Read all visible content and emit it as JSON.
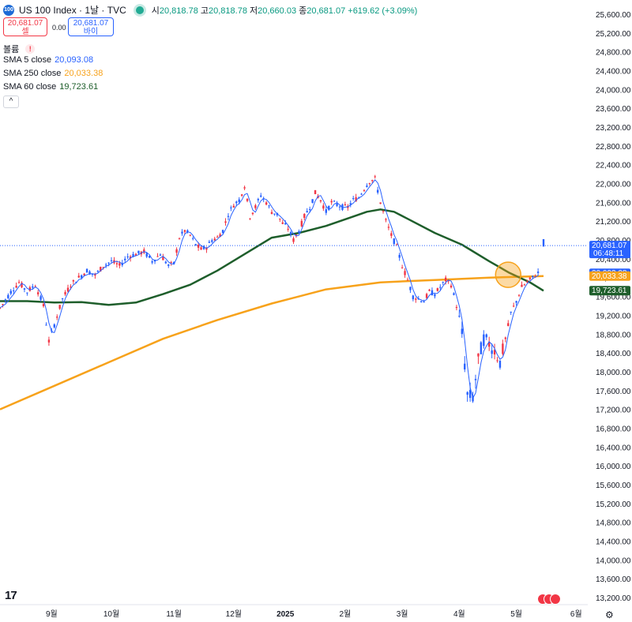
{
  "header": {
    "badge": "100",
    "title": "US 100 Index · 1날 · TVC",
    "open_label": "시",
    "open": "20,818.78",
    "high_label": "고",
    "high": "20,818.78",
    "low_label": "저",
    "low": "20,660.03",
    "close_label": "종",
    "close": "20,681.07",
    "change": "+619.62 (+3.09%)"
  },
  "trade": {
    "sell_price": "20,681.07",
    "sell_label": "셀",
    "spread": "0.00",
    "buy_price": "20,681.07",
    "buy_label": "바이"
  },
  "volume": {
    "label": "볼륨",
    "warn": "!"
  },
  "indicators": [
    {
      "label": "SMA 5 close",
      "value": "20,093.08",
      "color": "#2962ff"
    },
    {
      "label": "SMA 250 close",
      "value": "20,033.38",
      "color": "#f7a21b"
    },
    {
      "label": "SMA 60 close",
      "value": "19,723.61",
      "color": "#1e5e2b"
    }
  ],
  "collapse": "^",
  "colors": {
    "up": "#f23645",
    "down": "#2962ff",
    "sma5": "#2962ff",
    "sma250": "#f7a21b",
    "sma60": "#1e5e2b",
    "price_line": "#2962ff"
  },
  "price_tags": [
    {
      "price": 20681.07,
      "line1": "20,681.07",
      "line2": "06:48:11",
      "color": "#2962ff"
    },
    {
      "price": 20093.08,
      "line1": "20,093.08",
      "line2": "",
      "color": "#2962ff"
    },
    {
      "price": 20033.38,
      "line1": "20,033.38",
      "line2": "",
      "color": "#f7a21b"
    },
    {
      "price": 19723.61,
      "line1": "19,723.61",
      "line2": "",
      "color": "#1e5e2b"
    }
  ],
  "chart_data": {
    "type": "line",
    "y_ticks": [
      "25,600.00",
      "25,200.00",
      "24,800.00",
      "24,400.00",
      "24,000.00",
      "23,600.00",
      "23,200.00",
      "22,800.00",
      "22,400.00",
      "22,000.00",
      "21,600.00",
      "21,200.00",
      "20,800.00",
      "20,400.00",
      "20,000.00",
      "19,600.00",
      "19,200.00",
      "18,800.00",
      "18,400.00",
      "18,000.00",
      "17,600.00",
      "17,200.00",
      "16,800.00",
      "16,400.00",
      "16,000.00",
      "15,600.00",
      "15,200.00",
      "14,800.00",
      "14,400.00",
      "14,000.00",
      "13,600.00",
      "13,200.00"
    ],
    "y_tick_values": [
      25600,
      25200,
      24800,
      24400,
      24000,
      23600,
      23200,
      22800,
      22400,
      22000,
      21600,
      21200,
      20800,
      20400,
      20000,
      19600,
      19200,
      18800,
      18400,
      18000,
      17600,
      17200,
      16800,
      16400,
      16000,
      15600,
      15200,
      14800,
      14400,
      14000,
      13600,
      13200
    ],
    "ylim": [
      13000,
      25800
    ],
    "x_ticks": [
      "9월",
      "10월",
      "11월",
      "12월",
      "2025",
      "2월",
      "3월",
      "4월",
      "5월",
      "6월"
    ],
    "x_tick_index": [
      38,
      82,
      128,
      172,
      210,
      254,
      296,
      338,
      380,
      424
    ],
    "ohlc_points": [
      {
        "i": 0,
        "v": 19350
      },
      {
        "i": 8,
        "v": 19700
      },
      {
        "i": 14,
        "v": 19900
      },
      {
        "i": 20,
        "v": 19700
      },
      {
        "i": 26,
        "v": 19850
      },
      {
        "i": 32,
        "v": 19400
      },
      {
        "i": 36,
        "v": 18650
      },
      {
        "i": 40,
        "v": 19000
      },
      {
        "i": 46,
        "v": 19550
      },
      {
        "i": 52,
        "v": 19850
      },
      {
        "i": 58,
        "v": 20000
      },
      {
        "i": 64,
        "v": 20150
      },
      {
        "i": 70,
        "v": 20050
      },
      {
        "i": 76,
        "v": 20250
      },
      {
        "i": 82,
        "v": 20350
      },
      {
        "i": 88,
        "v": 20250
      },
      {
        "i": 94,
        "v": 20450
      },
      {
        "i": 100,
        "v": 20500
      },
      {
        "i": 106,
        "v": 20550
      },
      {
        "i": 112,
        "v": 20350
      },
      {
        "i": 118,
        "v": 20500
      },
      {
        "i": 124,
        "v": 20250
      },
      {
        "i": 128,
        "v": 20300
      },
      {
        "i": 132,
        "v": 20850
      },
      {
        "i": 136,
        "v": 21000
      },
      {
        "i": 140,
        "v": 20900
      },
      {
        "i": 144,
        "v": 20700
      },
      {
        "i": 148,
        "v": 20600
      },
      {
        "i": 152,
        "v": 20650
      },
      {
        "i": 156,
        "v": 20800
      },
      {
        "i": 160,
        "v": 20850
      },
      {
        "i": 164,
        "v": 21000
      },
      {
        "i": 168,
        "v": 21350
      },
      {
        "i": 172,
        "v": 21550
      },
      {
        "i": 176,
        "v": 21650
      },
      {
        "i": 180,
        "v": 21950
      },
      {
        "i": 184,
        "v": 21300
      },
      {
        "i": 188,
        "v": 21500
      },
      {
        "i": 192,
        "v": 21750
      },
      {
        "i": 196,
        "v": 21600
      },
      {
        "i": 200,
        "v": 21400
      },
      {
        "i": 204,
        "v": 21350
      },
      {
        "i": 208,
        "v": 21150
      },
      {
        "i": 212,
        "v": 21050
      },
      {
        "i": 216,
        "v": 20800
      },
      {
        "i": 220,
        "v": 21000
      },
      {
        "i": 224,
        "v": 21300
      },
      {
        "i": 228,
        "v": 21500
      },
      {
        "i": 232,
        "v": 21800
      },
      {
        "i": 236,
        "v": 21650
      },
      {
        "i": 240,
        "v": 21400
      },
      {
        "i": 244,
        "v": 21600
      },
      {
        "i": 248,
        "v": 21550
      },
      {
        "i": 252,
        "v": 21500
      },
      {
        "i": 256,
        "v": 21500
      },
      {
        "i": 260,
        "v": 21650
      },
      {
        "i": 264,
        "v": 21700
      },
      {
        "i": 268,
        "v": 21900
      },
      {
        "i": 272,
        "v": 22050
      },
      {
        "i": 276,
        "v": 22100
      },
      {
        "i": 280,
        "v": 21600
      },
      {
        "i": 284,
        "v": 21200
      },
      {
        "i": 288,
        "v": 20900
      },
      {
        "i": 292,
        "v": 20650
      },
      {
        "i": 296,
        "v": 20250
      },
      {
        "i": 300,
        "v": 19950
      },
      {
        "i": 304,
        "v": 19600
      },
      {
        "i": 308,
        "v": 19550
      },
      {
        "i": 312,
        "v": 19500
      },
      {
        "i": 316,
        "v": 19700
      },
      {
        "i": 320,
        "v": 19650
      },
      {
        "i": 324,
        "v": 19800
      },
      {
        "i": 328,
        "v": 19950
      },
      {
        "i": 332,
        "v": 19850
      },
      {
        "i": 336,
        "v": 19400
      },
      {
        "i": 340,
        "v": 18800
      },
      {
        "i": 344,
        "v": 17500
      },
      {
        "i": 348,
        "v": 17450
      },
      {
        "i": 352,
        "v": 18250
      },
      {
        "i": 356,
        "v": 18700
      },
      {
        "i": 360,
        "v": 18600
      },
      {
        "i": 364,
        "v": 18450
      },
      {
        "i": 368,
        "v": 18200
      },
      {
        "i": 372,
        "v": 18700
      },
      {
        "i": 376,
        "v": 19250
      },
      {
        "i": 380,
        "v": 19500
      },
      {
        "i": 384,
        "v": 19800
      },
      {
        "i": 388,
        "v": 19900
      },
      {
        "i": 392,
        "v": 20000
      },
      {
        "i": 396,
        "v": 20100
      },
      {
        "i": 400,
        "v": 20681
      }
    ],
    "sma60": [
      {
        "i": 0,
        "v": 19500
      },
      {
        "i": 20,
        "v": 19500
      },
      {
        "i": 40,
        "v": 19470
      },
      {
        "i": 60,
        "v": 19480
      },
      {
        "i": 80,
        "v": 19420
      },
      {
        "i": 100,
        "v": 19470
      },
      {
        "i": 120,
        "v": 19650
      },
      {
        "i": 140,
        "v": 19850
      },
      {
        "i": 160,
        "v": 20150
      },
      {
        "i": 180,
        "v": 20500
      },
      {
        "i": 200,
        "v": 20850
      },
      {
        "i": 220,
        "v": 20950
      },
      {
        "i": 240,
        "v": 21100
      },
      {
        "i": 260,
        "v": 21300
      },
      {
        "i": 270,
        "v": 21400
      },
      {
        "i": 280,
        "v": 21450
      },
      {
        "i": 290,
        "v": 21400
      },
      {
        "i": 300,
        "v": 21250
      },
      {
        "i": 320,
        "v": 20950
      },
      {
        "i": 340,
        "v": 20700
      },
      {
        "i": 360,
        "v": 20350
      },
      {
        "i": 375,
        "v": 20100
      },
      {
        "i": 390,
        "v": 19900
      },
      {
        "i": 400,
        "v": 19723
      }
    ],
    "sma250": [
      {
        "i": 0,
        "v": 17200
      },
      {
        "i": 40,
        "v": 17700
      },
      {
        "i": 80,
        "v": 18200
      },
      {
        "i": 120,
        "v": 18700
      },
      {
        "i": 160,
        "v": 19100
      },
      {
        "i": 200,
        "v": 19450
      },
      {
        "i": 240,
        "v": 19750
      },
      {
        "i": 280,
        "v": 19900
      },
      {
        "i": 320,
        "v": 19950
      },
      {
        "i": 360,
        "v": 20000
      },
      {
        "i": 400,
        "v": 20033
      }
    ],
    "highlight": {
      "i": 374,
      "v": 20060
    },
    "title": "",
    "xlabel": "",
    "ylabel": ""
  },
  "footer": {
    "logo": "17",
    "settings_icon": "gear-icon"
  }
}
